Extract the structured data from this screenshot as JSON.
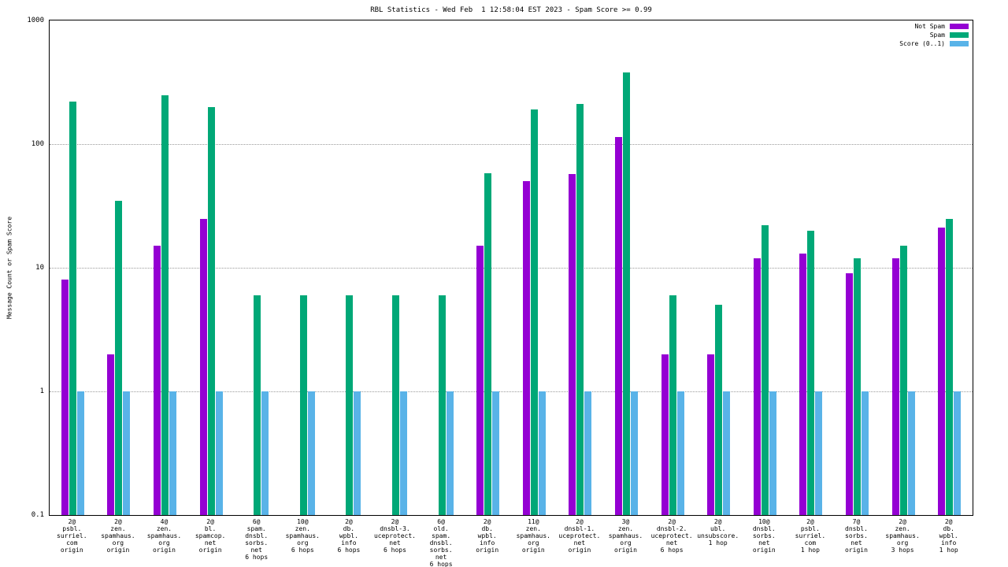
{
  "chart_data": {
    "type": "bar",
    "title": "RBL Statistics - Wed Feb  1 12:58:04 EST 2023 - Spam Score >= 0.99",
    "ylabel": "Message Count or Spam Score",
    "y_scale": "log",
    "ylim": [
      0.1,
      1000
    ],
    "y_ticks": [
      0.1,
      1,
      10,
      100,
      1000
    ],
    "grid": "dotted-horizontal",
    "legend_position": "top-right",
    "colors": {
      "not_spam": "#9400d3",
      "spam": "#00a877",
      "score": "#59b3e8"
    },
    "categories": [
      [
        "2@",
        "psbl.",
        "surriel.",
        "com",
        "origin"
      ],
      [
        "2@",
        "zen.",
        "spamhaus.",
        "org",
        "origin"
      ],
      [
        "4@",
        "zen.",
        "spamhaus.",
        "org",
        "origin"
      ],
      [
        "2@",
        "bl.",
        "spamcop.",
        "net",
        "origin"
      ],
      [
        "6@",
        "spam.",
        "dnsbl.",
        "sorbs.",
        "net",
        "6 hops"
      ],
      [
        "10@",
        "zen.",
        "spamhaus.",
        "org",
        "6 hops"
      ],
      [
        "2@",
        "db.",
        "wpbl.",
        "info",
        "6 hops"
      ],
      [
        "2@",
        "dnsbl-3.",
        "uceprotect.",
        "net",
        "6 hops"
      ],
      [
        "6@",
        "old.",
        "spam.",
        "dnsbl.",
        "sorbs.",
        "net",
        "6 hops"
      ],
      [
        "2@",
        "db.",
        "wpbl.",
        "info",
        "origin"
      ],
      [
        "11@",
        "zen.",
        "spamhaus.",
        "org",
        "origin"
      ],
      [
        "2@",
        "dnsbl-1.",
        "uceprotect.",
        "net",
        "origin"
      ],
      [
        "3@",
        "zen.",
        "spamhaus.",
        "org",
        "origin"
      ],
      [
        "2@",
        "dnsbl-2.",
        "uceprotect.",
        "net",
        "6 hops"
      ],
      [
        "2@",
        "ubl.",
        "unsubscore.",
        "1 hop"
      ],
      [
        "10@",
        "dnsbl.",
        "sorbs.",
        "net",
        "origin"
      ],
      [
        "2@",
        "psbl.",
        "surriel.",
        "com",
        "1 hop"
      ],
      [
        "7@",
        "dnsbl.",
        "sorbs.",
        "net",
        "origin"
      ],
      [
        "2@",
        "zen.",
        "spamhaus.",
        "org",
        "3 hops"
      ],
      [
        "2@",
        "db.",
        "wpbl.",
        "info",
        "1 hop"
      ]
    ],
    "series": [
      {
        "name": "Not Spam",
        "color": "#9400d3",
        "values": [
          8,
          2,
          15,
          25,
          null,
          null,
          null,
          null,
          null,
          15,
          50,
          57,
          115,
          2,
          2,
          12,
          13,
          9,
          12,
          21
        ]
      },
      {
        "name": "Spam",
        "color": "#00a877",
        "values": [
          220,
          35,
          250,
          200,
          6,
          6,
          6,
          6,
          6,
          58,
          190,
          210,
          380,
          6,
          5,
          22,
          20,
          12,
          15,
          25
        ]
      },
      {
        "name": "Score (0..1)",
        "color": "#59b3e8",
        "values": [
          1,
          1,
          1,
          1,
          1,
          1,
          1,
          1,
          1,
          1,
          1,
          1,
          1,
          1,
          1,
          1,
          1,
          1,
          1,
          1
        ]
      }
    ]
  }
}
